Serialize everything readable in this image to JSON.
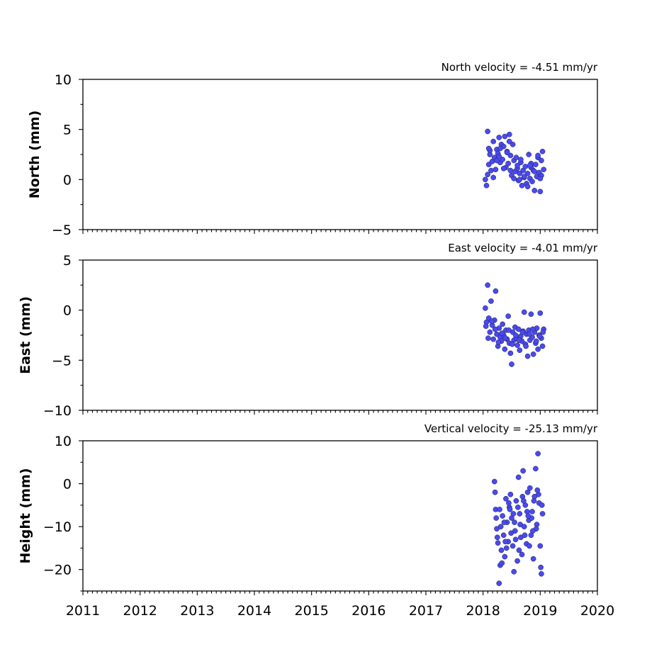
{
  "chart_data": [
    {
      "type": "scatter",
      "title": "North velocity = -4.51 mm/yr",
      "ylabel": "North (mm)",
      "xlim": [
        2011,
        2020
      ],
      "ylim": [
        -5,
        10
      ],
      "yticks": [
        -5,
        0,
        5,
        10
      ],
      "ytick_labels": [
        "−5",
        "0",
        "5",
        "10"
      ],
      "marker_color": "#4a4aee",
      "grid": false,
      "series": [
        {
          "x": [
            2018.04,
            2018.06,
            2018.08,
            2018.1,
            2018.12,
            2018.14,
            2018.16,
            2018.18,
            2018.2,
            2018.22,
            2018.24,
            2018.26,
            2018.28,
            2018.3,
            2018.32,
            2018.34,
            2018.36,
            2018.38,
            2018.4,
            2018.42,
            2018.44,
            2018.46,
            2018.48,
            2018.5,
            2018.52,
            2018.54,
            2018.56,
            2018.58,
            2018.6,
            2018.62,
            2018.64,
            2018.66,
            2018.68,
            2018.7,
            2018.72,
            2018.74,
            2018.76,
            2018.78,
            2018.8,
            2018.82,
            2018.84,
            2018.86,
            2018.88,
            2018.9,
            2018.92,
            2018.94,
            2018.96,
            2018.98,
            2019.0,
            2019.02,
            2019.04,
            2019.06,
            2018.08,
            2018.12,
            2018.18,
            2018.24,
            2018.3,
            2018.36,
            2018.42,
            2018.48,
            2018.54,
            2018.6,
            2018.66,
            2018.72,
            2018.78,
            2018.84,
            2018.9,
            2018.96,
            2019.02,
            2018.1,
            2018.28,
            2018.46,
            2018.64,
            2018.82,
            2019.0
          ],
          "y": [
            0.0,
            -0.6,
            4.8,
            1.5,
            2.5,
            0.9,
            1.8,
            3.8,
            2.2,
            1.0,
            3.0,
            2.6,
            4.2,
            1.7,
            3.5,
            2.0,
            3.3,
            4.3,
            1.2,
            2.8,
            1.6,
            4.5,
            2.4,
            0.4,
            3.5,
            1.9,
            0.8,
            2.2,
            1.1,
            -0.1,
            0.6,
            1.7,
            -0.6,
            0.9,
            0.2,
            1.3,
            -0.4,
            0.6,
            2.5,
            0.1,
            1.2,
            -0.2,
            0.9,
            -1.1,
            1.5,
            0.3,
            2.2,
            0.7,
            -1.2,
            1.9,
            2.8,
            1.0,
            0.5,
            2.9,
            0.2,
            1.9,
            3.1,
            1.1,
            2.7,
            0.9,
            0.1,
            1.4,
            2.0,
            0.3,
            -0.7,
            1.6,
            0.8,
            2.4,
            0.4,
            3.1,
            2.3,
            3.8,
            0.0,
            1.4,
            0.1
          ]
        }
      ]
    },
    {
      "type": "scatter",
      "title": "East velocity = -4.01 mm/yr",
      "ylabel": "East (mm)",
      "xlim": [
        2011,
        2020
      ],
      "ylim": [
        -10,
        5
      ],
      "yticks": [
        -10,
        -5,
        0,
        5
      ],
      "ytick_labels": [
        "−10",
        "−5",
        "0",
        "5"
      ],
      "marker_color": "#4a4aee",
      "grid": false,
      "series": [
        {
          "x": [
            2018.04,
            2018.06,
            2018.08,
            2018.1,
            2018.12,
            2018.14,
            2018.16,
            2018.18,
            2018.2,
            2018.22,
            2018.24,
            2018.26,
            2018.28,
            2018.3,
            2018.32,
            2018.34,
            2018.36,
            2018.38,
            2018.4,
            2018.42,
            2018.44,
            2018.46,
            2018.48,
            2018.5,
            2018.52,
            2018.54,
            2018.56,
            2018.58,
            2018.6,
            2018.62,
            2018.64,
            2018.66,
            2018.68,
            2018.7,
            2018.72,
            2018.74,
            2018.76,
            2018.78,
            2018.8,
            2018.82,
            2018.84,
            2018.86,
            2018.88,
            2018.9,
            2018.92,
            2018.94,
            2018.96,
            2018.98,
            2019.0,
            2019.02,
            2019.04,
            2019.06,
            2018.05,
            2018.09,
            2018.15,
            2018.21,
            2018.27,
            2018.33,
            2018.39,
            2018.45,
            2018.51,
            2018.57,
            2018.63,
            2018.69,
            2018.75,
            2018.81,
            2018.87,
            2018.93,
            2018.99,
            2019.05
          ],
          "y": [
            0.2,
            -1.2,
            2.5,
            -0.8,
            -2.2,
            0.9,
            -1.5,
            -2.9,
            -1.0,
            1.9,
            -2.4,
            -3.6,
            -1.8,
            -2.7,
            -3.1,
            -1.4,
            -2.5,
            -3.9,
            -2.0,
            -2.9,
            -0.6,
            -3.3,
            -4.3,
            -5.4,
            -2.2,
            -3.0,
            -1.7,
            -2.8,
            -3.5,
            -1.9,
            -4.0,
            -2.6,
            -3.1,
            -2.1,
            -0.2,
            -3.4,
            -2.4,
            -4.6,
            -2.0,
            -3.0,
            -0.4,
            -2.7,
            -4.4,
            -2.2,
            -3.3,
            -1.8,
            -3.9,
            -2.5,
            -0.3,
            -2.8,
            -3.6,
            -1.9,
            -1.6,
            -2.8,
            -1.1,
            -1.9,
            -3.2,
            -2.3,
            -2.8,
            -2.0,
            -3.4,
            -2.5,
            -3.0,
            -2.2,
            -3.6,
            -2.4,
            -1.9,
            -3.1,
            -2.6,
            -2.2
          ]
        }
      ]
    },
    {
      "type": "scatter",
      "title": "Vertical velocity = -25.13 mm/yr",
      "ylabel": "Height (mm)",
      "xlim": [
        2011,
        2020
      ],
      "ylim": [
        -25,
        10
      ],
      "yticks": [
        -20,
        -10,
        0,
        10
      ],
      "ytick_labels": [
        "−20",
        "−10",
        "0",
        "10"
      ],
      "xticks": [
        2011,
        2012,
        2013,
        2014,
        2015,
        2016,
        2017,
        2018,
        2019,
        2020
      ],
      "xtick_labels": [
        "2011",
        "2012",
        "2013",
        "2014",
        "2015",
        "2016",
        "2017",
        "2018",
        "2019",
        "2020"
      ],
      "marker_color": "#4a4aee",
      "grid": false,
      "series": [
        {
          "x": [
            2018.2,
            2018.22,
            2018.24,
            2018.26,
            2018.28,
            2018.3,
            2018.32,
            2018.34,
            2018.36,
            2018.38,
            2018.4,
            2018.42,
            2018.44,
            2018.46,
            2018.48,
            2018.5,
            2018.52,
            2018.54,
            2018.56,
            2018.58,
            2018.6,
            2018.62,
            2018.64,
            2018.66,
            2018.68,
            2018.7,
            2018.72,
            2018.74,
            2018.76,
            2018.78,
            2018.8,
            2018.82,
            2018.84,
            2018.86,
            2018.88,
            2018.9,
            2018.92,
            2018.94,
            2018.96,
            2018.98,
            2019.0,
            2019.02,
            2019.04,
            2018.21,
            2018.25,
            2018.29,
            2018.33,
            2018.37,
            2018.41,
            2018.45,
            2018.49,
            2018.53,
            2018.57,
            2018.61,
            2018.65,
            2018.69,
            2018.73,
            2018.77,
            2018.81,
            2018.85,
            2018.89,
            2018.93,
            2018.97,
            2019.01,
            2018.23,
            2018.31,
            2018.39,
            2018.47,
            2018.55,
            2018.63,
            2018.71,
            2018.79,
            2018.87,
            2018.95,
            2019.03
          ],
          "y": [
            0.5,
            -6.0,
            -10.5,
            -13.8,
            -23.2,
            -19.0,
            -15.5,
            -7.5,
            -12.0,
            -17.0,
            -3.5,
            -9.0,
            -13.5,
            -5.5,
            -2.5,
            -8.0,
            -14.5,
            -20.5,
            -11.0,
            -4.0,
            -18.0,
            1.5,
            -7.0,
            -12.5,
            -16.5,
            3.0,
            -10.0,
            -5.0,
            -14.0,
            -2.0,
            -8.5,
            -1.0,
            -12.0,
            -6.5,
            -17.5,
            -3.0,
            3.5,
            -9.5,
            7.0,
            -4.5,
            -14.5,
            -21.0,
            -7.0,
            -2.0,
            -12.5,
            -6.0,
            -18.5,
            -9.0,
            -15.0,
            -4.5,
            -11.5,
            -7.0,
            -13.0,
            -5.5,
            -9.5,
            -3.0,
            -12.0,
            -6.5,
            -14.5,
            -8.0,
            -4.0,
            -10.5,
            -2.5,
            -19.5,
            -8.0,
            -10.0,
            -13.5,
            -6.0,
            -9.0,
            -15.5,
            -4.0,
            -7.5,
            -11.0,
            -1.5,
            -5.0
          ]
        }
      ]
    }
  ]
}
